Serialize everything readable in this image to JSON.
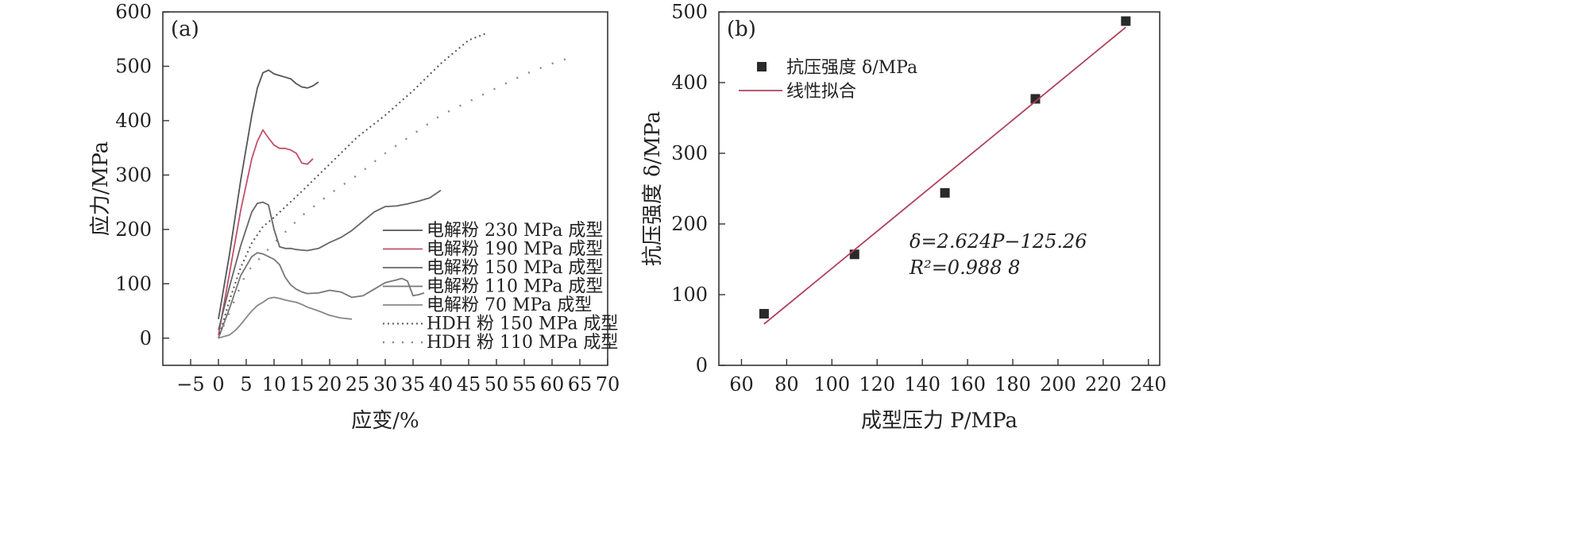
{
  "chart_data": [
    {
      "panel_label": "(a)",
      "type": "line",
      "xlabel": "应变/%",
      "ylabel": "应力/MPa",
      "xlim": [
        -10,
        70
      ],
      "ylim": [
        -50,
        600
      ],
      "xticks": [
        -5,
        0,
        5,
        10,
        15,
        20,
        25,
        30,
        35,
        40,
        45,
        50,
        55,
        60,
        65,
        70
      ],
      "yticks": [
        0,
        100,
        200,
        300,
        400,
        500,
        600
      ],
      "legend_position": "bottom-right",
      "series": [
        {
          "name": "电解粉 230 MPa 成型",
          "style": "solid",
          "color": "#555555",
          "x": [
            0,
            2,
            4,
            6,
            7,
            8,
            9,
            10,
            11,
            12,
            13,
            14,
            15,
            16,
            17,
            18
          ],
          "y": [
            35,
            155,
            290,
            410,
            460,
            488,
            493,
            486,
            483,
            480,
            477,
            468,
            462,
            460,
            464,
            471
          ]
        },
        {
          "name": "电解粉 190 MPa 成型",
          "style": "solid",
          "color": "#c0506a",
          "x": [
            0,
            2,
            4,
            6,
            7,
            8,
            9,
            10,
            11,
            12,
            13,
            14,
            15,
            16,
            17
          ],
          "y": [
            5,
            120,
            235,
            330,
            362,
            383,
            368,
            355,
            349,
            349,
            346,
            340,
            322,
            320,
            330
          ]
        },
        {
          "name": "电解粉 150 MPa 成型",
          "style": "solid",
          "color": "#666666",
          "x": [
            0,
            2,
            4,
            6,
            7,
            8,
            9,
            10,
            11,
            12,
            13,
            14,
            15,
            16,
            18,
            20,
            22,
            24,
            26,
            28,
            30,
            32,
            34,
            36,
            38,
            40
          ],
          "y": [
            15,
            95,
            170,
            232,
            248,
            250,
            245,
            200,
            168,
            165,
            165,
            163,
            162,
            161,
            165,
            176,
            185,
            198,
            215,
            232,
            242,
            243,
            247,
            252,
            258,
            272
          ]
        },
        {
          "name": "电解粉 110 MPa 成型",
          "style": "solid",
          "color": "#777777",
          "x": [
            0,
            2,
            4,
            6,
            7,
            8,
            9,
            10,
            11,
            12,
            13,
            14,
            15,
            16,
            18,
            20,
            22,
            24,
            26,
            28,
            30,
            32,
            33,
            34,
            35,
            36,
            37
          ],
          "y": [
            0,
            55,
            115,
            150,
            157,
            155,
            150,
            145,
            135,
            112,
            98,
            90,
            85,
            82,
            83,
            88,
            85,
            75,
            78,
            90,
            102,
            107,
            110,
            105,
            78,
            80,
            83
          ]
        },
        {
          "name": "电解粉 70 MPa 成型",
          "style": "solid",
          "color": "#888888",
          "x": [
            0,
            1,
            2,
            3,
            4,
            5,
            6,
            7,
            8,
            9,
            10,
            11,
            12,
            13,
            14,
            15,
            16,
            18,
            20,
            22,
            24
          ],
          "y": [
            0,
            3,
            6,
            14,
            25,
            38,
            50,
            60,
            66,
            73,
            75,
            73,
            70,
            68,
            66,
            62,
            57,
            50,
            42,
            37,
            35
          ]
        },
        {
          "name": "HDH 粉 150 MPa 成型",
          "style": "dotted",
          "color": "#555555",
          "x": [
            0,
            2,
            4,
            6,
            8,
            10,
            15,
            20,
            25,
            30,
            35,
            40,
            45,
            48
          ],
          "y": [
            0,
            70,
            130,
            175,
            205,
            222,
            270,
            320,
            370,
            410,
            455,
            505,
            548,
            560
          ]
        },
        {
          "name": "HDH 粉 110 MPa 成型",
          "style": "dotted-sparse",
          "color": "#888888",
          "x": [
            0,
            5,
            10,
            15,
            20,
            25,
            30,
            35,
            40,
            45,
            50,
            55,
            60,
            63
          ],
          "y": [
            0,
            120,
            175,
            225,
            265,
            300,
            340,
            375,
            410,
            435,
            460,
            485,
            505,
            515
          ]
        }
      ]
    },
    {
      "panel_label": "(b)",
      "type": "scatter",
      "xlabel": "成型压力 P/MPa",
      "ylabel": "抗压强度 δ/MPa",
      "xlim": [
        50,
        245
      ],
      "ylim": [
        0,
        500
      ],
      "xticks": [
        60,
        80,
        100,
        120,
        140,
        160,
        180,
        200,
        220,
        240
      ],
      "yticks": [
        0,
        100,
        200,
        300,
        400,
        500
      ],
      "legend_position": "top-left",
      "series": [
        {
          "name": "抗压强度 δ/MPa",
          "marker": "square",
          "color": "#2a2a2a",
          "x": [
            70,
            110,
            150,
            190,
            230
          ],
          "y": [
            73,
            157,
            244,
            377,
            487
          ]
        },
        {
          "name": "线性拟合",
          "style": "solid",
          "color": "#b0405a",
          "x": [
            70,
            230
          ],
          "y": [
            58.42,
            478.26
          ]
        }
      ],
      "annotations": [
        "δ=2.624P−125.26",
        "R²=0.988 8"
      ]
    }
  ]
}
